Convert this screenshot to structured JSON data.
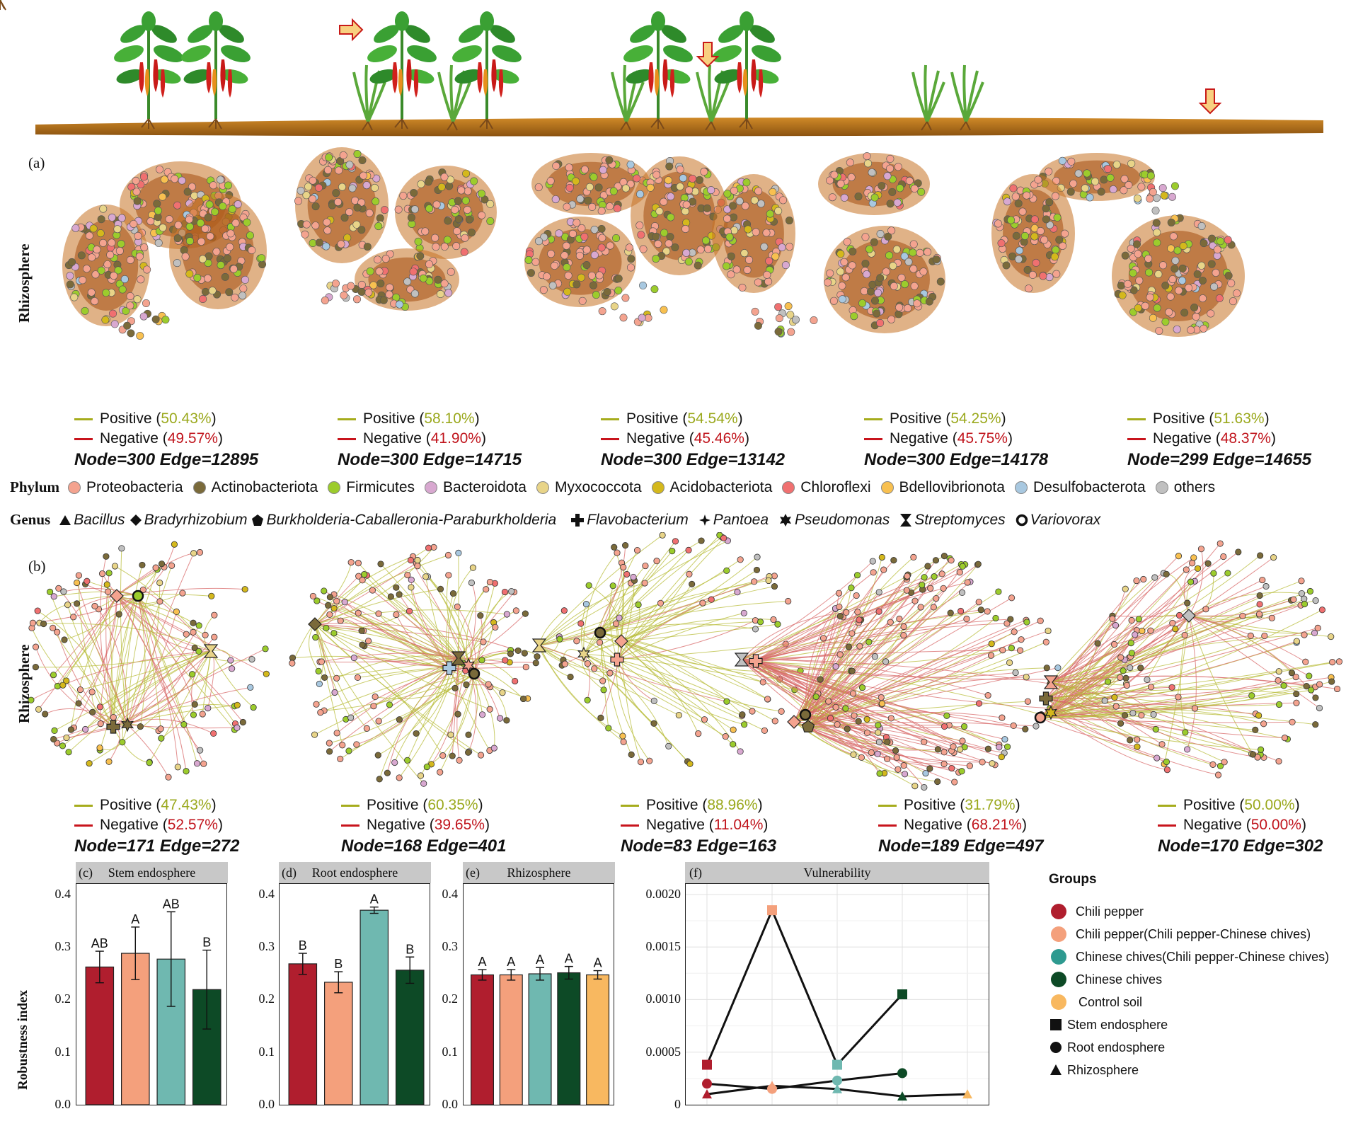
{
  "panel_letters": {
    "a": "(a)",
    "b": "(b)",
    "c": "(c)",
    "d": "(d)",
    "e": "(e)",
    "f": "(f)"
  },
  "row_labels": {
    "a": "Rhizosphere",
    "b": "Rhizosphere"
  },
  "networks_a": [
    {
      "positive_label": "Positive",
      "positive_pct": "50.43%",
      "negative_label": "Negative",
      "negative_pct": "49.57%",
      "stats": "Node=300 Edge=12895"
    },
    {
      "positive_label": "Positive",
      "positive_pct": "58.10%",
      "negative_label": "Negative",
      "negative_pct": "41.90%",
      "stats": "Node=300 Edge=14715"
    },
    {
      "positive_label": "Positive",
      "positive_pct": "54.54%",
      "negative_label": "Negative",
      "negative_pct": "45.46%",
      "stats": "Node=300 Edge=13142"
    },
    {
      "positive_label": "Positive",
      "positive_pct": "54.25%",
      "negative_label": "Negative",
      "negative_pct": "45.75%",
      "stats": "Node=300 Edge=14178"
    },
    {
      "positive_label": "Positive",
      "positive_pct": "51.63%",
      "negative_label": "Negative",
      "negative_pct": "48.37%",
      "stats": "Node=299 Edge=14655"
    }
  ],
  "networks_b": [
    {
      "positive_label": "Positive",
      "positive_pct": "47.43%",
      "negative_label": "Negative",
      "negative_pct": "52.57%",
      "stats": "Node=171 Edge=272"
    },
    {
      "positive_label": "Positive",
      "positive_pct": "60.35%",
      "negative_label": "Negative",
      "negative_pct": "39.65%",
      "stats": "Node=168 Edge=401"
    },
    {
      "positive_label": "Positive",
      "positive_pct": "88.96%",
      "negative_label": "Negative",
      "negative_pct": "11.04%",
      "stats": "Node=83 Edge=163"
    },
    {
      "positive_label": "Positive",
      "positive_pct": "31.79%",
      "negative_label": "Negative",
      "negative_pct": "68.21%",
      "stats": "Node=189 Edge=497"
    },
    {
      "positive_label": "Positive",
      "positive_pct": "50.00%",
      "negative_label": "Negative",
      "negative_pct": "50.00%",
      "stats": "Node=170 Edge=302"
    }
  ],
  "phylum_legend": {
    "key": "Phylum",
    "items": [
      {
        "name": "Proteobacteria",
        "color": "#f4a38f"
      },
      {
        "name": "Actinobacteriota",
        "color": "#7a6a3a"
      },
      {
        "name": "Firmicutes",
        "color": "#9ccc2c"
      },
      {
        "name": "Bacteroidota",
        "color": "#d8a8d0"
      },
      {
        "name": "Myxococcota",
        "color": "#e8d488"
      },
      {
        "name": "Acidobacteriota",
        "color": "#d4b81c"
      },
      {
        "name": "Chloroflexi",
        "color": "#f07070"
      },
      {
        "name": "Bdellovibrionota",
        "color": "#f8c050"
      },
      {
        "name": "Desulfobacterota",
        "color": "#a8c8e0"
      },
      {
        "name": "others",
        "color": "#c0c0c0"
      }
    ]
  },
  "genus_legend": {
    "key": "Genus",
    "items": [
      {
        "name": "Bacillus",
        "icon": "triangle-icon"
      },
      {
        "name": "Bradyrhizobium",
        "icon": "diamond-icon"
      },
      {
        "name": "Burkholderia-Caballeronia-Paraburkholderia",
        "icon": "pentagon-icon"
      },
      {
        "name": "Flavobacterium",
        "icon": "cross-icon"
      },
      {
        "name": "Pantoea",
        "icon": "four-point-star-icon"
      },
      {
        "name": "Pseudomonas",
        "icon": "star-icon"
      },
      {
        "name": "Streptomyces",
        "icon": "hourglass-icon"
      },
      {
        "name": "Variovorax",
        "icon": "ring-icon"
      }
    ]
  },
  "colors": {
    "positive": "#a6ac1c",
    "negative": "#c8141c",
    "chili": "#b01e2e",
    "chili_mix": "#f4a07c",
    "chives_mix": "#6fb8b0",
    "chives": "#0d4a26",
    "control": "#f8b860"
  },
  "robustness": {
    "ylabel": "Robustness index",
    "yticks": [
      "0.0",
      "0.1",
      "0.2",
      "0.3",
      "0.4"
    ],
    "ylim": [
      0,
      0.42
    ],
    "panels": [
      {
        "title": "Stem endosphere",
        "values": [
          0.262,
          0.288,
          0.277,
          0.219
        ],
        "errors": [
          0.03,
          0.05,
          0.09,
          0.075
        ],
        "letters": [
          "AB",
          "A",
          "AB",
          "B"
        ],
        "groups": [
          "chili",
          "chili_mix",
          "chives_mix",
          "chives"
        ]
      },
      {
        "title": "Root endosphere",
        "values": [
          0.268,
          0.233,
          0.37,
          0.256
        ],
        "errors": [
          0.02,
          0.02,
          0.006,
          0.025
        ],
        "letters": [
          "B",
          "B",
          "A",
          "B"
        ],
        "groups": [
          "chili",
          "chili_mix",
          "chives_mix",
          "chives"
        ]
      },
      {
        "title": "Rhizosphere",
        "values": [
          0.247,
          0.247,
          0.249,
          0.251,
          0.247
        ],
        "errors": [
          0.01,
          0.01,
          0.012,
          0.012,
          0.008
        ],
        "letters": [
          "A",
          "A",
          "A",
          "A",
          "A"
        ],
        "groups": [
          "chili",
          "chili_mix",
          "chives_mix",
          "chives",
          "control"
        ]
      }
    ]
  },
  "chart_data": {
    "type": "line",
    "title": "Vulnerability",
    "categories": [
      "Chili pepper",
      "Chili pepper(Chili pepper-Chinese chives)",
      "Chinese chives(Chili pepper-Chinese chives)",
      "Chinese chives",
      "Control soil"
    ],
    "yticks": [
      "0",
      "0.0005",
      "0.0010",
      "0.0015",
      "0.0020"
    ],
    "ylim": [
      0,
      0.0021
    ],
    "series": [
      {
        "name": "Stem endosphere",
        "marker": "square",
        "values": [
          0.00038,
          0.00185,
          0.00038,
          0.00105,
          null
        ]
      },
      {
        "name": "Root endosphere",
        "marker": "circle",
        "values": [
          0.0002,
          0.00015,
          0.00023,
          0.0003,
          null
        ]
      },
      {
        "name": "Rhizosphere",
        "marker": "triangle",
        "values": [
          0.0001,
          0.00018,
          0.00015,
          8e-05,
          0.0001
        ]
      }
    ],
    "point_colors": [
      "#b01e2e",
      "#f4a07c",
      "#6fb8b0",
      "#0d4a26",
      "#f8b860"
    ],
    "grid": true
  },
  "groups_legend": {
    "title": "Groups",
    "color_items": [
      {
        "label": "Chili pepper",
        "color": "#b01e2e"
      },
      {
        "label": "Chili pepper(Chili pepper-Chinese chives)",
        "color": "#f4a07c"
      },
      {
        "label": "Chinese chives(Chili pepper-Chinese chives)",
        "color": "#2e9a90"
      },
      {
        "label": "Chinese chives",
        "color": "#0d4a26"
      },
      {
        "label": "Control soil",
        "color": "#f8b860"
      }
    ],
    "shape_items": [
      {
        "label": "Stem endosphere",
        "icon": "square-icon"
      },
      {
        "label": "Root endosphere",
        "icon": "circle-icon"
      },
      {
        "label": "Rhizosphere",
        "icon": "triangle-icon"
      }
    ]
  }
}
